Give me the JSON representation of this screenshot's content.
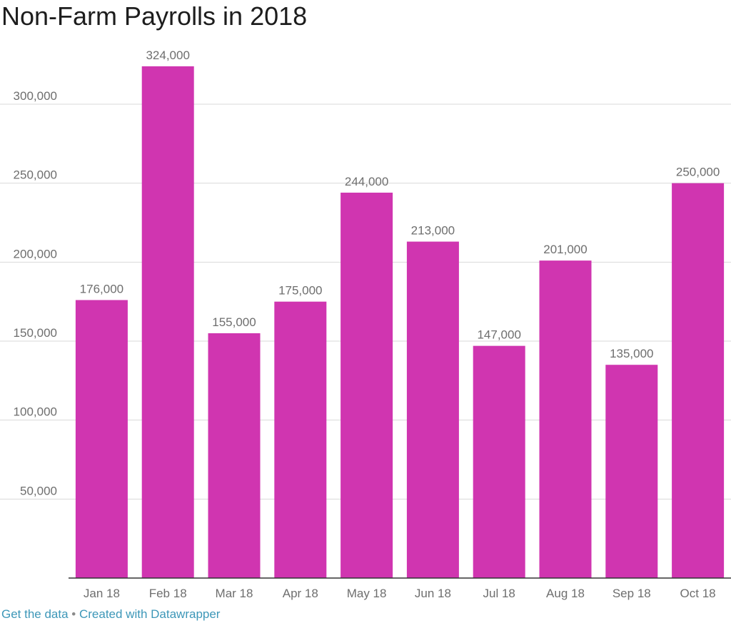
{
  "title": "Non-Farm Payrolls in 2018",
  "footer": {
    "get_data": "Get the data",
    "separator": " • ",
    "created_with": "Created with Datawrapper"
  },
  "colors": {
    "bar": "#d035b0",
    "grid": "#d9d9d9",
    "tick_text": "#6e6e6e",
    "label_text": "#6e6e6e",
    "link": "#3d97b8"
  },
  "chart_data": {
    "type": "bar",
    "title": "Non-Farm Payrolls in 2018",
    "xlabel": "",
    "ylabel": "",
    "categories": [
      "Jan 18",
      "Feb 18",
      "Mar 18",
      "Apr 18",
      "May 18",
      "Jun 18",
      "Jul 18",
      "Aug 18",
      "Sep 18",
      "Oct 18"
    ],
    "values": [
      176000,
      324000,
      155000,
      175000,
      244000,
      213000,
      147000,
      201000,
      135000,
      250000
    ],
    "value_labels": [
      "176,000",
      "324,000",
      "155,000",
      "175,000",
      "244,000",
      "213,000",
      "147,000",
      "201,000",
      "135,000",
      "250,000"
    ],
    "yticks": [
      50000,
      100000,
      150000,
      200000,
      250000,
      300000
    ],
    "ytick_labels": [
      "50,000",
      "100,000",
      "150,000",
      "200,000",
      "250,000",
      "300,000"
    ],
    "ylim": [
      0,
      324000
    ],
    "grid": true,
    "legend": "none"
  }
}
